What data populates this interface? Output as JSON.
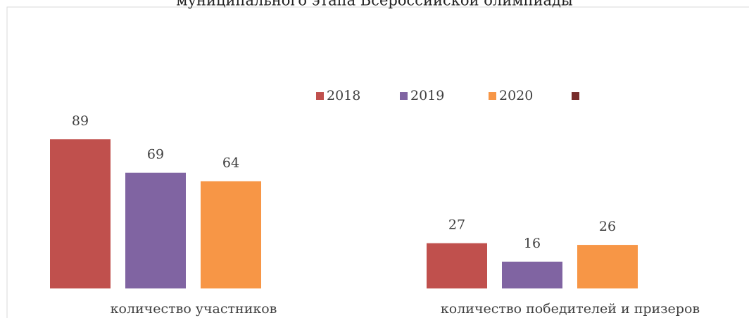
{
  "chart_data": {
    "type": "bar",
    "title": "муниципального этапа Всероссийской олимпиады",
    "categories": [
      "количество участников",
      "количество победителей и призеров"
    ],
    "series": [
      {
        "name": "2018",
        "color": "#c0504d",
        "values": [
          89,
          27
        ]
      },
      {
        "name": "2019",
        "color": "#8064a2",
        "values": [
          69,
          16
        ]
      },
      {
        "name": "2020",
        "color": "#f79646",
        "values": [
          64,
          26
        ]
      },
      {
        "name": null,
        "color": "#772c2a",
        "values": [
          null,
          null
        ]
      }
    ]
  }
}
